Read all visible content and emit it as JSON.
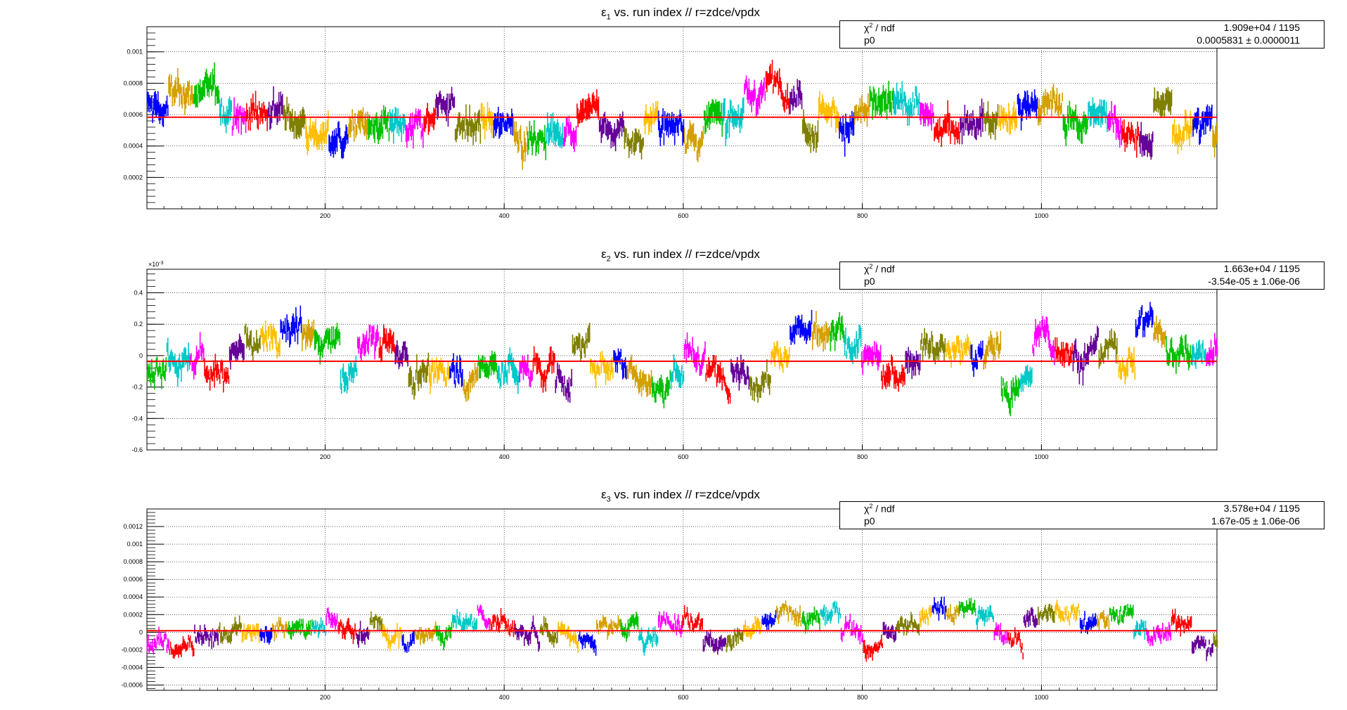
{
  "colors": [
    "#0000ff",
    "#d4a000",
    "#00c000",
    "#00c8c8",
    "#ff00ff",
    "#ff0000",
    "#660099",
    "#7f7f00",
    "#ffbf00"
  ],
  "fit_color": "#ff0000",
  "chart_data": [
    {
      "type": "scatter",
      "title_sym": "ε",
      "title_sub": "1",
      "title_rest": " vs. run index // r=zdce/vpdx",
      "xlim": [
        1,
        1196
      ],
      "ylim": [
        0,
        0.00116
      ],
      "x_ticks": [
        200,
        400,
        600,
        800,
        1000
      ],
      "y_ticks": [
        0.0002,
        0.0004,
        0.0006,
        0.0008,
        0.001
      ],
      "y_tick_labels": [
        "0.0002",
        "0.0004",
        "0.0006",
        "0.0008",
        "0.001"
      ],
      "y_exponent": "",
      "fit_value": 0.0005831,
      "base": 0.00058,
      "amp": 0.00011,
      "noise": 8e-05,
      "stat": {
        "row1_label": "χ",
        "row1_label_sup": "2",
        "row1_label_rest": " / ndf",
        "row1_value": "1.909e+04 / 1195",
        "row2_label": "p0",
        "row2_value": "0.0005831 ± 0.0000011"
      }
    },
    {
      "type": "scatter",
      "title_sym": "ε",
      "title_sub": "2",
      "title_rest": " vs. run index // r=zdce/vpdx",
      "xlim": [
        1,
        1196
      ],
      "ylim": [
        -0.6,
        0.55
      ],
      "x_ticks": [
        200,
        400,
        600,
        800,
        1000
      ],
      "y_ticks": [
        -0.6,
        -0.4,
        -0.2,
        0,
        0.2,
        0.4
      ],
      "y_tick_labels": [
        "-0.6",
        "-0.4",
        "-0.2",
        "0",
        "0.2",
        "0.4"
      ],
      "y_exponent": "×10",
      "y_exponent_sup": "-3",
      "fit_value": -0.0354,
      "base": -0.03,
      "amp": 0.13,
      "noise": 0.07,
      "stat": {
        "row1_label": "χ",
        "row1_label_sup": "2",
        "row1_label_rest": " / ndf",
        "row1_value": "1.663e+04 / 1195",
        "row2_label": "p0",
        "row2_value": "-3.54e-05 ± 1.06e-06"
      }
    },
    {
      "type": "scatter",
      "title_sym": "ε",
      "title_sub": "3",
      "title_rest": " vs. run index // r=zdce/vpdx",
      "xlim": [
        1,
        1196
      ],
      "ylim": [
        -0.00066,
        0.0014
      ],
      "x_ticks": [
        200,
        400,
        600,
        800,
        1000
      ],
      "y_ticks": [
        -0.0006,
        -0.0004,
        -0.0002,
        0,
        0.0002,
        0.0004,
        0.0006,
        0.0008,
        0.001,
        0.0012
      ],
      "y_tick_labels": [
        "-0.0006",
        "-0.0004",
        "-0.0002",
        "0",
        "0.0002",
        "0.0004",
        "0.0006",
        "0.0008",
        "0.001",
        "0.0012"
      ],
      "y_exponent": "",
      "fit_value": 1.67e-05,
      "base": 2e-05,
      "amp": 0.00016,
      "noise": 8e-05,
      "stat": {
        "row1_label": "χ",
        "row1_label_sup": "2",
        "row1_label_rest": " / ndf",
        "row1_value": "3.578e+04 / 1195",
        "row2_label": "p0",
        "row2_value": "1.67e-05 ± 1.06e-06"
      }
    }
  ]
}
